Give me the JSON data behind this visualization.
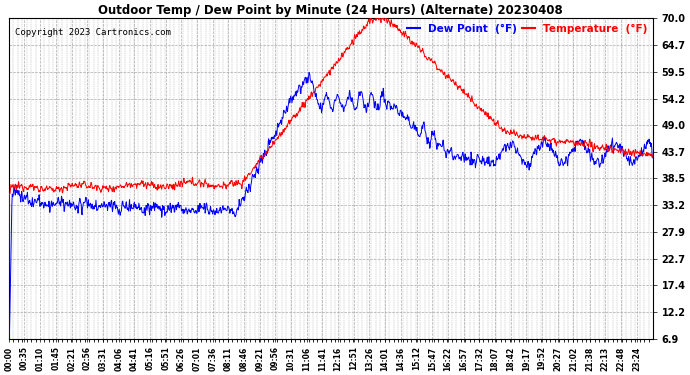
{
  "title": "Outdoor Temp / Dew Point by Minute (24 Hours) (Alternate) 20230408",
  "copyright": "Copyright 2023 Cartronics.com",
  "legend_dew": "Dew Point  (°F)",
  "legend_temp": "Temperature  (°F)",
  "dew_color": "#0000ff",
  "temp_color": "#ff0000",
  "bg_color": "#ffffff",
  "grid_color": "#aaaaaa",
  "yticks": [
    6.9,
    12.2,
    17.4,
    22.7,
    27.9,
    33.2,
    38.5,
    43.7,
    49.0,
    54.2,
    59.5,
    64.7,
    70.0
  ],
  "ylim": [
    6.9,
    70.0
  ],
  "total_minutes": 1440,
  "xlabels": [
    "00:00",
    "00:35",
    "01:10",
    "01:45",
    "02:21",
    "02:56",
    "03:31",
    "04:06",
    "04:41",
    "05:16",
    "05:51",
    "06:26",
    "07:01",
    "07:36",
    "08:11",
    "08:46",
    "09:21",
    "09:56",
    "10:31",
    "11:06",
    "11:41",
    "12:16",
    "12:51",
    "13:26",
    "14:01",
    "14:36",
    "15:12",
    "15:47",
    "16:22",
    "16:57",
    "17:32",
    "18:07",
    "18:42",
    "19:17",
    "19:52",
    "20:27",
    "21:02",
    "21:38",
    "22:13",
    "22:48",
    "23:24"
  ]
}
